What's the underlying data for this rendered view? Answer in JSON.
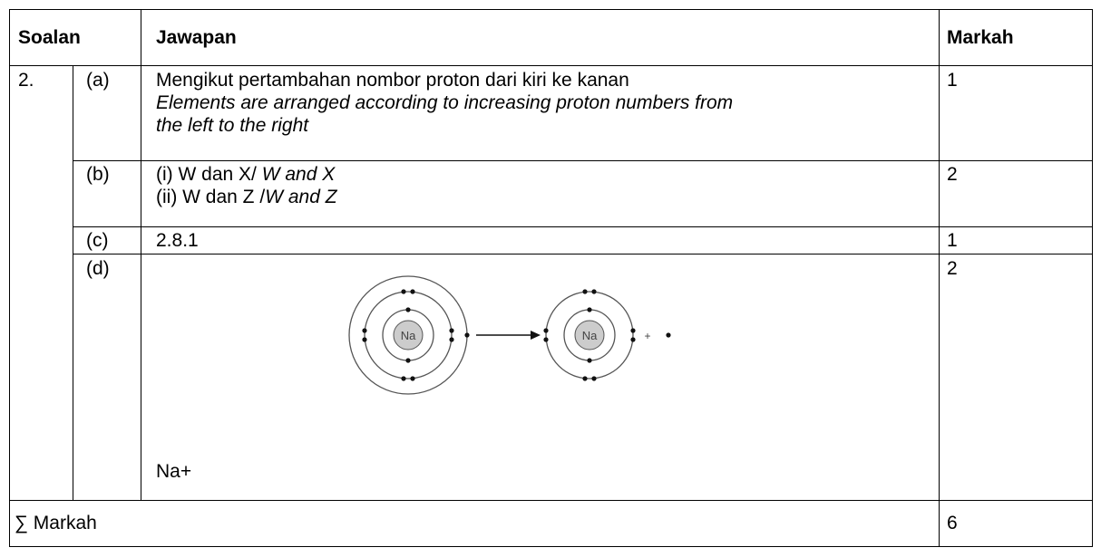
{
  "header": {
    "question": "Soalan",
    "answer": "Jawapan",
    "mark": "Markah"
  },
  "question": "2.",
  "rows": [
    {
      "part": "(a)",
      "answer": "Mengikut pertambahan nombor proton dari kiri ke kanan",
      "answer_en": "Elements are arranged according to increasing proton numbers from the left to the right",
      "mark": "1"
    },
    {
      "part": "(b)",
      "lines": [
        {
          "ms": "(i) W dan X/ ",
          "en": "W and X"
        },
        {
          "ms": "(ii) W dan Z /",
          "en": "W and Z"
        }
      ],
      "mark": "2"
    },
    {
      "part": "(c)",
      "answer": "2.8.1",
      "mark": "1"
    },
    {
      "part": "(d)",
      "diagram": {
        "atom_left": "Na",
        "atom_right": "Na",
        "plus": "+"
      },
      "answer": "Na+",
      "mark": "2"
    }
  ],
  "total": {
    "label": "∑ Markah",
    "mark": "6"
  }
}
